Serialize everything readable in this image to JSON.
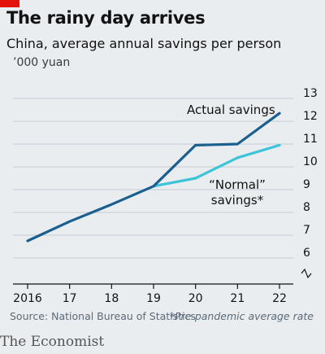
{
  "header": {
    "title": "The rainy day arrives",
    "subtitle": "China, average annual savings per person",
    "unit": "’000 yuan"
  },
  "footer": {
    "source": "Source: National Bureau of Statistics",
    "footnote": "*Pre-pandemic average rate",
    "brand": "The Economist"
  },
  "colors": {
    "background": "#e9edf0",
    "accent_red": "#e3120b",
    "actual_series": "#1a5f8f",
    "normal_series": "#3ec4d8",
    "grid": "#c4ccd2",
    "axis": "#121212"
  },
  "chart_data": {
    "type": "line",
    "title": "The rainy day arrives",
    "subtitle": "China, average annual savings per person",
    "ylabel": "’000 yuan",
    "x": [
      "2016",
      "17",
      "18",
      "19",
      "20",
      "21",
      "22"
    ],
    "x_values": [
      2016,
      2017,
      2018,
      2019,
      2020,
      2021,
      2022
    ],
    "ylim": [
      5.5,
      13
    ],
    "y_ticks": [
      "6",
      "7",
      "8",
      "9",
      "10",
      "11",
      "12",
      "13"
    ],
    "y_axis_break": true,
    "y_axis_side": "right",
    "grid": true,
    "series": [
      {
        "name": "Actual savings",
        "color": "#1a5f8f",
        "x": [
          2016,
          2017,
          2018,
          2019,
          2020,
          2021,
          2022
        ],
        "values": [
          6.75,
          7.6,
          8.35,
          9.15,
          10.95,
          11.0,
          12.35
        ]
      },
      {
        "name": "“Normal” savings*",
        "name_lines": [
          "“Normal”",
          "savings*"
        ],
        "color": "#3ec4d8",
        "x": [
          2019,
          2020,
          2021,
          2022
        ],
        "values": [
          9.15,
          9.5,
          10.4,
          10.95
        ]
      }
    ]
  }
}
